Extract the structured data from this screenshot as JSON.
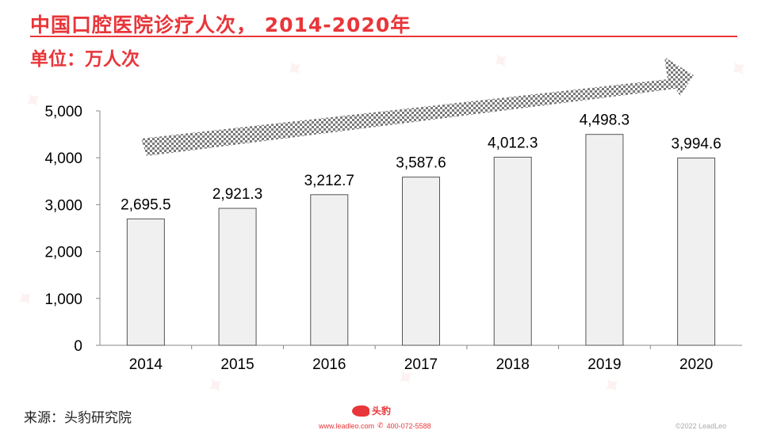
{
  "header": {
    "title": "中国口腔医院诊疗人次， 2014-2020年",
    "unit": "单位：万人次"
  },
  "chart_data": {
    "type": "bar",
    "categories": [
      "2014",
      "2015",
      "2016",
      "2017",
      "2018",
      "2019",
      "2020"
    ],
    "values": [
      2695.5,
      2921.3,
      3212.7,
      3587.6,
      4012.3,
      4498.3,
      3994.6
    ],
    "value_labels": [
      "2,695.5",
      "2,921.3",
      "3,212.7",
      "3,587.6",
      "4,012.3",
      "4,498.3",
      "3,994.6"
    ],
    "y_ticks": [
      "0",
      "1,000",
      "2,000",
      "3,000",
      "4,000",
      "5,000"
    ],
    "ylim": [
      0,
      5000
    ],
    "annotations": [
      "upward-trend-arrow"
    ],
    "colors": {
      "bar_fill": "#f0f0f0",
      "bar_stroke": "#555555",
      "arrow": "#7a7a7a"
    }
  },
  "footer": {
    "source": "来源：头豹研究院",
    "logo_text": "头豹",
    "contact": "www.leadleo.com",
    "phone": "400-072-5588",
    "copyright": "©2022 LeadLeo"
  },
  "theme": {
    "accent": "#e8363a"
  }
}
